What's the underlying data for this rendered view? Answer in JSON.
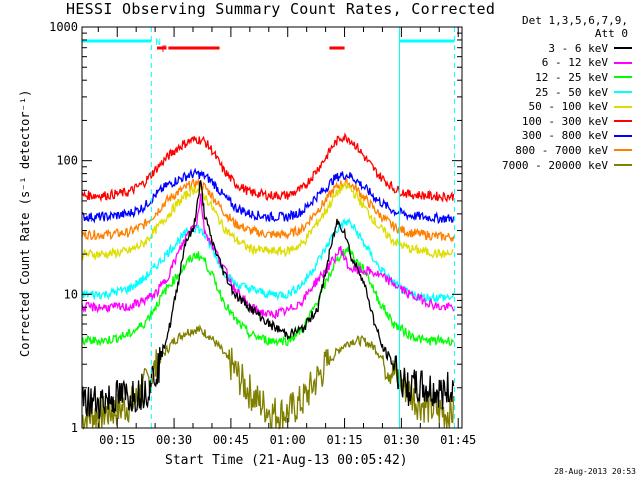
{
  "header": {
    "title": "HESSI Observing Summary Count Rates, Corrected",
    "det_line1": "Det 1,3,5,6,7,9,",
    "det_line2": "Att 0",
    "timestamp": "28-Aug-2013 20:53"
  },
  "chart_data": {
    "type": "line",
    "title": "HESSI Observing Summary Count Rates, Corrected",
    "xlabel": "Start Time (21-Aug-13 00:05:42)",
    "ylabel": "Corrected Count Rate (s⁻¹ detector⁻¹)",
    "yscale": "log",
    "ylim": [
      1,
      1000
    ],
    "xlim_minutes": [
      5.7,
      106
    ],
    "x_ticks": [
      {
        "m": 15,
        "label": "00:15"
      },
      {
        "m": 30,
        "label": "00:30"
      },
      {
        "m": 45,
        "label": "00:45"
      },
      {
        "m": 60,
        "label": "01:00"
      },
      {
        "m": 75,
        "label": "01:15"
      },
      {
        "m": 90,
        "label": "01:30"
      },
      {
        "m": 105,
        "label": "01:45"
      }
    ],
    "y_ticks": [
      {
        "v": 1,
        "label": "1"
      },
      {
        "v": 10,
        "label": "10"
      },
      {
        "v": 100,
        "label": "100"
      },
      {
        "v": 1000,
        "label": "1000"
      }
    ],
    "legend_position": "right",
    "series": [
      {
        "name": "3 - 6 keV",
        "color": "#000000",
        "points": [
          [
            5.7,
            1.5
          ],
          [
            10,
            1.6
          ],
          [
            15,
            1.7
          ],
          [
            20,
            1.8
          ],
          [
            23,
            2
          ],
          [
            26,
            3
          ],
          [
            29,
            6
          ],
          [
            31,
            12
          ],
          [
            33,
            25
          ],
          [
            35,
            30
          ],
          [
            36,
            45
          ],
          [
            37,
            70
          ],
          [
            38,
            40
          ],
          [
            40,
            25
          ],
          [
            43,
            15
          ],
          [
            46,
            10
          ],
          [
            50,
            8
          ],
          [
            55,
            6
          ],
          [
            60,
            5
          ],
          [
            64,
            5.5
          ],
          [
            68,
            8
          ],
          [
            71,
            20
          ],
          [
            73,
            35
          ],
          [
            75,
            30
          ],
          [
            77,
            18
          ],
          [
            79,
            15
          ],
          [
            81,
            10
          ],
          [
            83,
            6
          ],
          [
            85,
            4
          ],
          [
            88,
            3
          ],
          [
            91,
            2
          ],
          [
            95,
            2
          ],
          [
            100,
            1.8
          ],
          [
            104,
            2
          ]
        ]
      },
      {
        "name": "6 - 12 keV",
        "color": "#ff00ff",
        "points": [
          [
            5.7,
            8
          ],
          [
            12,
            8
          ],
          [
            18,
            8
          ],
          [
            22,
            9
          ],
          [
            25,
            10
          ],
          [
            28,
            13
          ],
          [
            31,
            20
          ],
          [
            34,
            30
          ],
          [
            36,
            35
          ],
          [
            37,
            55
          ],
          [
            38,
            30
          ],
          [
            40,
            24
          ],
          [
            43,
            16
          ],
          [
            46,
            11
          ],
          [
            50,
            8
          ],
          [
            55,
            7
          ],
          [
            60,
            7.5
          ],
          [
            64,
            9
          ],
          [
            67,
            12
          ],
          [
            70,
            15
          ],
          [
            72,
            18
          ],
          [
            74,
            22
          ],
          [
            76,
            16
          ],
          [
            78,
            15
          ],
          [
            81,
            15
          ],
          [
            84,
            14
          ],
          [
            88,
            12
          ],
          [
            92,
            10
          ],
          [
            96,
            9
          ],
          [
            100,
            8
          ],
          [
            104,
            8
          ]
        ]
      },
      {
        "name": "12 - 25 keV",
        "color": "#00ff00",
        "points": [
          [
            5.7,
            4.5
          ],
          [
            12,
            4.5
          ],
          [
            18,
            5
          ],
          [
            22,
            6
          ],
          [
            25,
            8
          ],
          [
            28,
            11
          ],
          [
            31,
            14
          ],
          [
            34,
            18
          ],
          [
            36,
            20
          ],
          [
            38,
            18
          ],
          [
            40,
            14
          ],
          [
            43,
            9
          ],
          [
            46,
            6.5
          ],
          [
            50,
            5
          ],
          [
            55,
            4.5
          ],
          [
            60,
            4.5
          ],
          [
            64,
            5.5
          ],
          [
            67,
            8
          ],
          [
            70,
            12
          ],
          [
            72,
            16
          ],
          [
            74,
            20
          ],
          [
            76,
            22
          ],
          [
            78,
            18
          ],
          [
            81,
            14
          ],
          [
            84,
            9
          ],
          [
            88,
            6
          ],
          [
            92,
            5
          ],
          [
            96,
            4.5
          ],
          [
            100,
            4.5
          ],
          [
            104,
            4.5
          ]
        ]
      },
      {
        "name": "25 - 50 keV",
        "color": "#00ffff",
        "points": [
          [
            5.7,
            10
          ],
          [
            12,
            10
          ],
          [
            18,
            11
          ],
          [
            22,
            13
          ],
          [
            25,
            16
          ],
          [
            28,
            20
          ],
          [
            31,
            25
          ],
          [
            34,
            30
          ],
          [
            36,
            32
          ],
          [
            38,
            28
          ],
          [
            40,
            22
          ],
          [
            43,
            15
          ],
          [
            46,
            12
          ],
          [
            50,
            11
          ],
          [
            55,
            10
          ],
          [
            60,
            10
          ],
          [
            64,
            12
          ],
          [
            67,
            16
          ],
          [
            70,
            22
          ],
          [
            72,
            28
          ],
          [
            74,
            33
          ],
          [
            76,
            35
          ],
          [
            78,
            30
          ],
          [
            81,
            22
          ],
          [
            84,
            16
          ],
          [
            88,
            12
          ],
          [
            92,
            10
          ],
          [
            96,
            9.5
          ],
          [
            100,
            9.5
          ],
          [
            104,
            9.5
          ]
        ]
      },
      {
        "name": "50 - 100 keV",
        "color": "#dddd00",
        "points": [
          [
            5.7,
            20
          ],
          [
            12,
            20
          ],
          [
            18,
            21
          ],
          [
            22,
            24
          ],
          [
            25,
            30
          ],
          [
            28,
            38
          ],
          [
            31,
            48
          ],
          [
            34,
            58
          ],
          [
            36,
            62
          ],
          [
            38,
            55
          ],
          [
            40,
            45
          ],
          [
            43,
            32
          ],
          [
            46,
            26
          ],
          [
            50,
            22
          ],
          [
            55,
            21
          ],
          [
            60,
            21
          ],
          [
            64,
            24
          ],
          [
            67,
            32
          ],
          [
            70,
            42
          ],
          [
            72,
            52
          ],
          [
            74,
            62
          ],
          [
            76,
            64
          ],
          [
            78,
            55
          ],
          [
            81,
            42
          ],
          [
            84,
            32
          ],
          [
            88,
            25
          ],
          [
            92,
            22
          ],
          [
            96,
            21
          ],
          [
            100,
            20
          ],
          [
            104,
            20
          ]
        ]
      },
      {
        "name": "100 - 300 keV",
        "color": "#ff0000",
        "points": [
          [
            5.7,
            55
          ],
          [
            12,
            55
          ],
          [
            18,
            58
          ],
          [
            22,
            68
          ],
          [
            25,
            85
          ],
          [
            28,
            105
          ],
          [
            31,
            125
          ],
          [
            34,
            140
          ],
          [
            36,
            145
          ],
          [
            38,
            140
          ],
          [
            40,
            120
          ],
          [
            43,
            85
          ],
          [
            46,
            68
          ],
          [
            50,
            58
          ],
          [
            55,
            55
          ],
          [
            60,
            55
          ],
          [
            64,
            62
          ],
          [
            67,
            80
          ],
          [
            70,
            105
          ],
          [
            72,
            130
          ],
          [
            74,
            150
          ],
          [
            76,
            148
          ],
          [
            78,
            130
          ],
          [
            81,
            100
          ],
          [
            84,
            78
          ],
          [
            88,
            62
          ],
          [
            92,
            56
          ],
          [
            96,
            55
          ],
          [
            100,
            54
          ],
          [
            104,
            54
          ]
        ]
      },
      {
        "name": "300 - 800 keV",
        "color": "#0000ff",
        "points": [
          [
            5.7,
            38
          ],
          [
            12,
            38
          ],
          [
            18,
            40
          ],
          [
            22,
            45
          ],
          [
            25,
            55
          ],
          [
            28,
            65
          ],
          [
            31,
            72
          ],
          [
            34,
            78
          ],
          [
            36,
            80
          ],
          [
            38,
            77
          ],
          [
            40,
            70
          ],
          [
            43,
            55
          ],
          [
            46,
            45
          ],
          [
            50,
            40
          ],
          [
            55,
            38
          ],
          [
            60,
            38
          ],
          [
            64,
            42
          ],
          [
            67,
            52
          ],
          [
            70,
            62
          ],
          [
            72,
            72
          ],
          [
            74,
            78
          ],
          [
            76,
            78
          ],
          [
            78,
            72
          ],
          [
            81,
            60
          ],
          [
            84,
            50
          ],
          [
            88,
            42
          ],
          [
            92,
            39
          ],
          [
            96,
            38
          ],
          [
            100,
            37
          ],
          [
            104,
            37
          ]
        ]
      },
      {
        "name": "800 - 7000 keV",
        "color": "#ff8000",
        "points": [
          [
            5.7,
            28
          ],
          [
            12,
            28
          ],
          [
            18,
            29
          ],
          [
            22,
            33
          ],
          [
            25,
            40
          ],
          [
            28,
            50
          ],
          [
            31,
            58
          ],
          [
            34,
            65
          ],
          [
            36,
            68
          ],
          [
            38,
            64
          ],
          [
            40,
            55
          ],
          [
            43,
            42
          ],
          [
            46,
            34
          ],
          [
            50,
            30
          ],
          [
            55,
            28
          ],
          [
            60,
            28
          ],
          [
            64,
            31
          ],
          [
            67,
            40
          ],
          [
            70,
            50
          ],
          [
            72,
            60
          ],
          [
            74,
            67
          ],
          [
            76,
            68
          ],
          [
            78,
            62
          ],
          [
            81,
            50
          ],
          [
            84,
            40
          ],
          [
            88,
            32
          ],
          [
            92,
            29
          ],
          [
            96,
            28
          ],
          [
            100,
            27
          ],
          [
            104,
            27
          ]
        ]
      },
      {
        "name": "7000 - 20000 keV",
        "color": "#808000",
        "points": [
          [
            5.7,
            1.2
          ],
          [
            12,
            1.3
          ],
          [
            16,
            1.4
          ],
          [
            20,
            1.6
          ],
          [
            24,
            2.5
          ],
          [
            27,
            3.5
          ],
          [
            30,
            4.5
          ],
          [
            33,
            5.2
          ],
          [
            36,
            5.5
          ],
          [
            39,
            5
          ],
          [
            42,
            4
          ],
          [
            45,
            3
          ],
          [
            48,
            2.2
          ],
          [
            52,
            1.6
          ],
          [
            56,
            1.3
          ],
          [
            60,
            1.3
          ],
          [
            64,
            1.6
          ],
          [
            68,
            2.4
          ],
          [
            71,
            3.2
          ],
          [
            74,
            4
          ],
          [
            77,
            4.5
          ],
          [
            80,
            4.5
          ],
          [
            83,
            4
          ],
          [
            86,
            3
          ],
          [
            90,
            2.2
          ],
          [
            94,
            1.6
          ],
          [
            98,
            1.4
          ],
          [
            102,
            1.3
          ],
          [
            104,
            1.3
          ]
        ]
      }
    ],
    "flags": [
      {
        "name": "N",
        "color": "#00ffff",
        "segments": [
          [
            5.7,
            24
          ],
          [
            89.5,
            104
          ]
        ]
      },
      {
        "name": "F",
        "color": "#ff0000",
        "segments": [
          [
            25.5,
            28
          ],
          [
            28.5,
            42
          ],
          [
            71,
            75
          ]
        ]
      }
    ],
    "dashed_markers_minutes": [
      24,
      104
    ],
    "solid_markers_minutes": [
      89.5
    ]
  }
}
